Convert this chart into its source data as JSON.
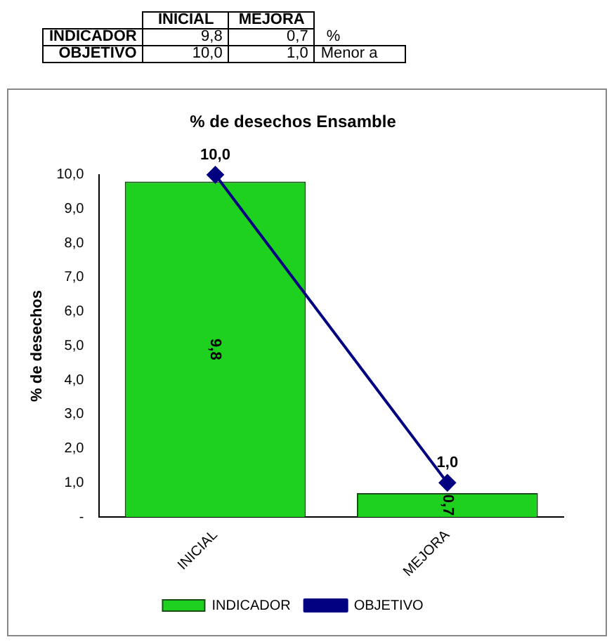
{
  "chart_data": {
    "type": "bar",
    "title": "% de desechos Ensamble",
    "ylabel": "% de desechos",
    "categories": [
      "INICIAL",
      "MEJORA"
    ],
    "series": [
      {
        "name": "INDICADOR",
        "color": "#1fd11f",
        "values": [
          9.8,
          0.7
        ],
        "value_labels": [
          "9,8",
          "0,7"
        ]
      },
      {
        "name": "OBJETIVO",
        "type": "line",
        "color": "#000080",
        "values": [
          10.0,
          1.0
        ],
        "value_labels": [
          "10,0",
          "1,0"
        ],
        "marker": "diamond",
        "line_style": "solid"
      }
    ],
    "ylim": [
      0,
      10
    ],
    "yticks": [
      {
        "value": 0,
        "label": "-"
      },
      {
        "value": 1,
        "label": "1,0"
      },
      {
        "value": 2,
        "label": "2,0"
      },
      {
        "value": 3,
        "label": "3,0"
      },
      {
        "value": 4,
        "label": "4,0"
      },
      {
        "value": 5,
        "label": "5,0"
      },
      {
        "value": 6,
        "label": "6,0"
      },
      {
        "value": 7,
        "label": "7,0"
      },
      {
        "value": 8,
        "label": "8,0"
      },
      {
        "value": 9,
        "label": "9,0"
      },
      {
        "value": 10,
        "label": "10,0"
      }
    ],
    "grid": false,
    "legend": "bottom",
    "annotations": [
      "%",
      "Menor a"
    ]
  }
}
